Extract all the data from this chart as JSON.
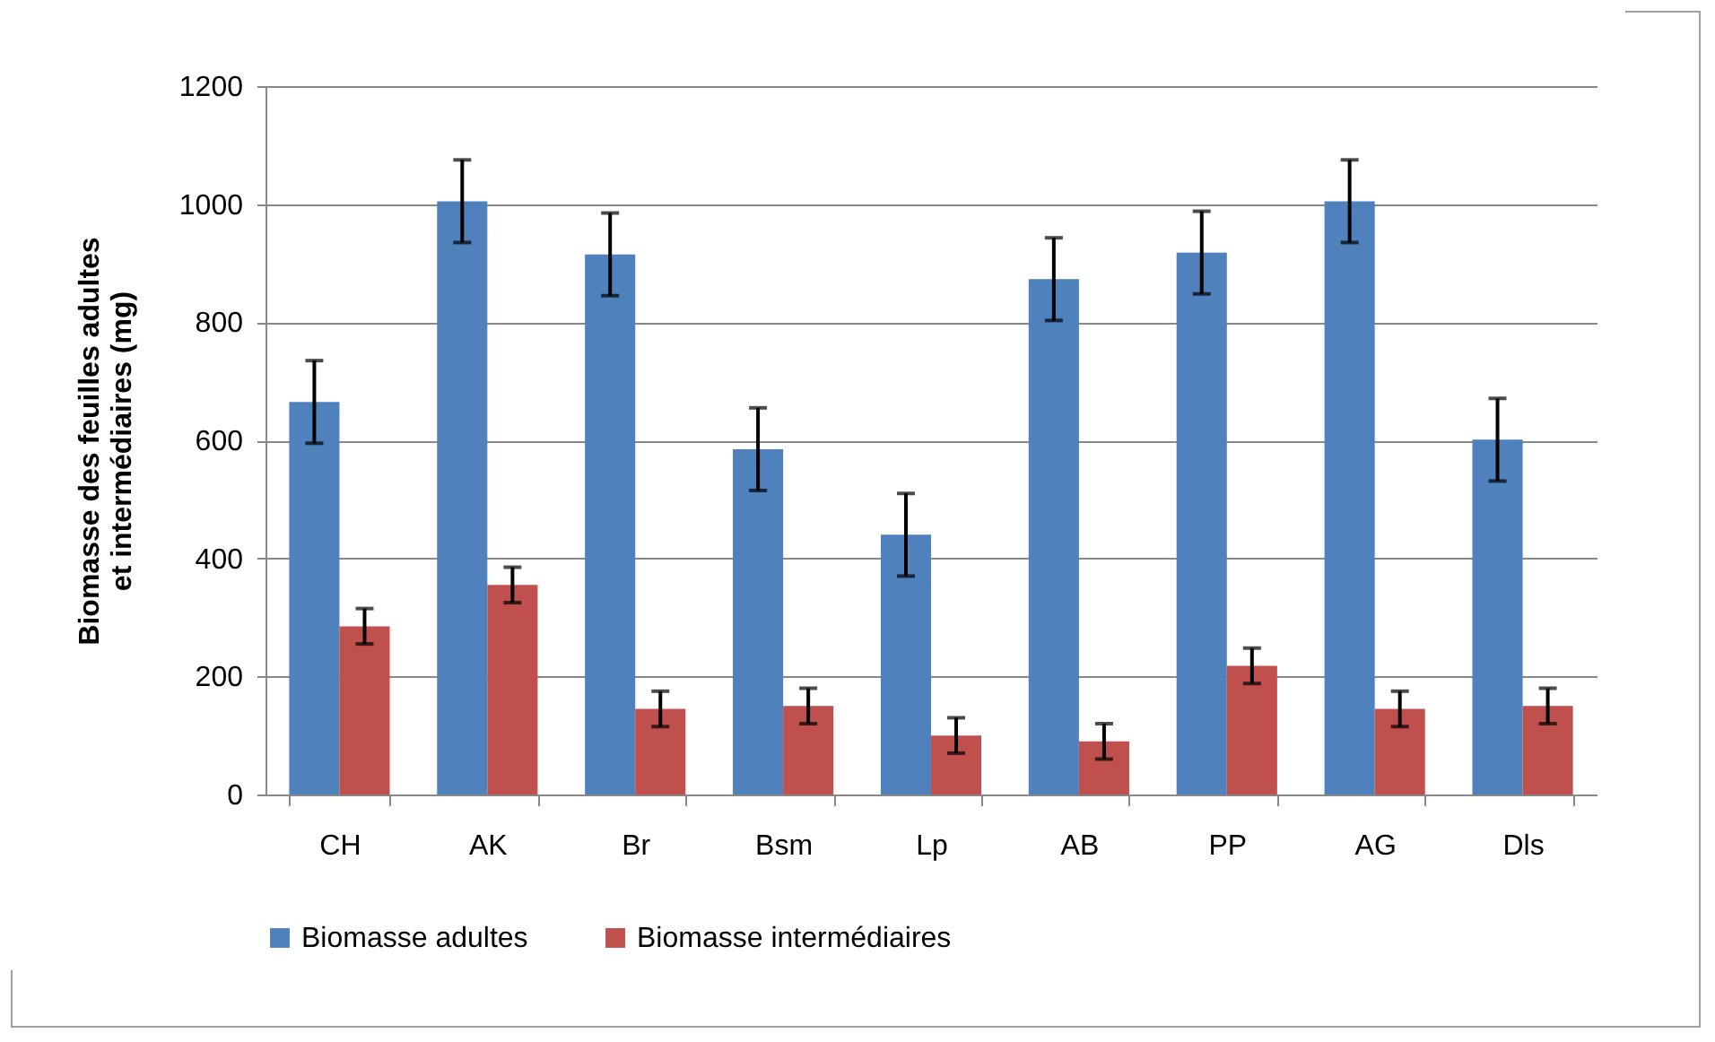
{
  "chart_data": {
    "type": "bar",
    "ylabel": "Biomasse des feuilles adultes et intermédiaires (mg)",
    "categories": [
      "CH",
      "AK",
      "Br",
      "Bsm",
      "Lp",
      "AB",
      "PP",
      "AG",
      "Dls"
    ],
    "series": [
      {
        "name": "Biomasse adultes",
        "color": "#4f81bd",
        "values": [
          665,
          1005,
          915,
          585,
          440,
          873,
          918,
          1005,
          601
        ],
        "errors": [
          70,
          70,
          70,
          70,
          70,
          70,
          70,
          70,
          70
        ]
      },
      {
        "name": "Biomasse intermédiaires",
        "color": "#c0504d",
        "values": [
          285,
          355,
          145,
          150,
          100,
          90,
          218,
          145,
          150
        ],
        "errors": [
          30,
          30,
          30,
          30,
          30,
          30,
          30,
          30,
          30
        ]
      }
    ],
    "ylim": [
      0,
      1200
    ],
    "yticks": [
      0,
      200,
      400,
      600,
      800,
      1000,
      1200
    ],
    "grid": "y",
    "legend": "bottom"
  }
}
